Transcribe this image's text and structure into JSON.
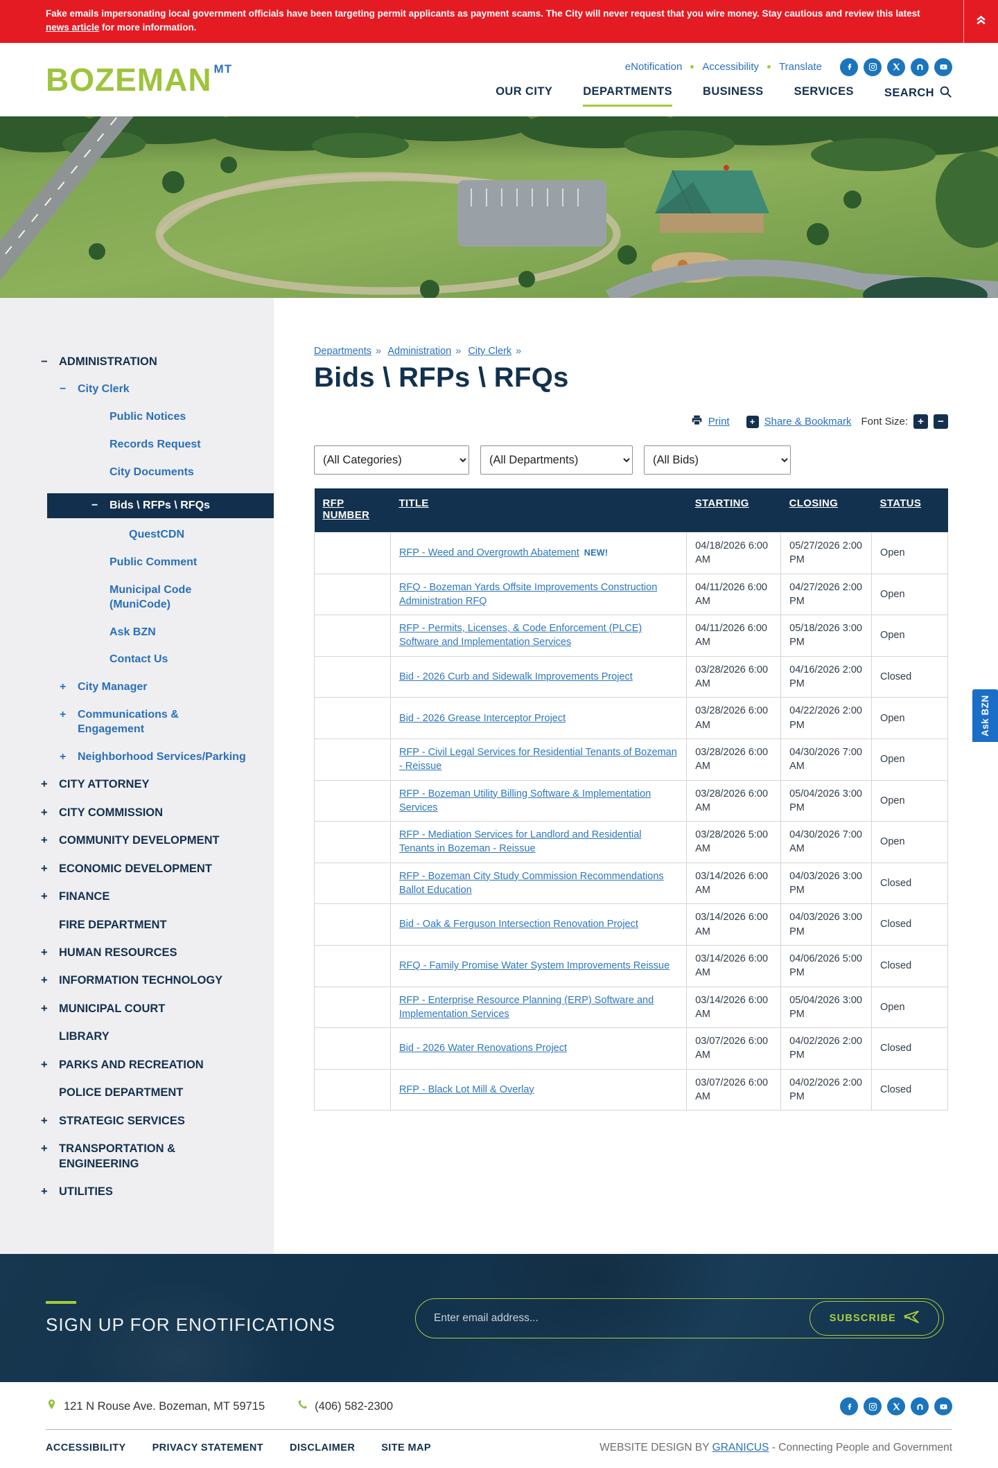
{
  "alert": {
    "text_before": "Fake emails impersonating local government officials have been targeting permit applicants as payment scams. The City will never request that you wire money. Stay cautious and review this latest ",
    "link_text": "news article",
    "text_after": " for more information."
  },
  "header": {
    "logo_text": "BOZEMAN",
    "logo_sup": "MT",
    "utility": [
      "eNotification",
      "Accessibility",
      "Translate"
    ],
    "nav": [
      "OUR CITY",
      "DEPARTMENTS",
      "BUSINESS",
      "SERVICES"
    ],
    "search_label": "SEARCH"
  },
  "social": [
    "facebook",
    "instagram",
    "x",
    "nextdoor",
    "youtube"
  ],
  "sidebar": {
    "items": [
      {
        "lvl": 0,
        "exp": "-",
        "label": "ADMINISTRATION",
        "style": "dept"
      },
      {
        "lvl": 1,
        "exp": "-",
        "label": "City Clerk",
        "style": "sub"
      },
      {
        "lvl": 2,
        "exp": "",
        "label": "Public Notices",
        "style": "leaf"
      },
      {
        "lvl": 2,
        "exp": "",
        "label": "Records Request",
        "style": "leaf"
      },
      {
        "lvl": 2,
        "exp": "",
        "label": "City Documents",
        "style": "leaf"
      },
      {
        "lvl": 2,
        "exp": "-",
        "label": "Bids \\ RFPs \\ RFQs",
        "style": "leaf",
        "active": true
      },
      {
        "lvl": 3,
        "exp": "",
        "label": "QuestCDN",
        "style": "leaf"
      },
      {
        "lvl": 2,
        "exp": "",
        "label": "Public Comment",
        "style": "leaf"
      },
      {
        "lvl": 2,
        "exp": "",
        "label": "Municipal Code (MuniCode)",
        "style": "leaf"
      },
      {
        "lvl": 2,
        "exp": "",
        "label": "Ask BZN",
        "style": "leaf"
      },
      {
        "lvl": 2,
        "exp": "",
        "label": "Contact Us",
        "style": "leaf"
      },
      {
        "lvl": 1,
        "exp": "+",
        "label": "City Manager",
        "style": "sub"
      },
      {
        "lvl": 1,
        "exp": "+",
        "label": "Communications & Engagement",
        "style": "sub"
      },
      {
        "lvl": 1,
        "exp": "+",
        "label": "Neighborhood Services/Parking",
        "style": "sub"
      },
      {
        "lvl": 0,
        "exp": "+",
        "label": "CITY ATTORNEY",
        "style": "dept"
      },
      {
        "lvl": 0,
        "exp": "+",
        "label": "CITY COMMISSION",
        "style": "dept"
      },
      {
        "lvl": 0,
        "exp": "+",
        "label": "COMMUNITY DEVELOPMENT",
        "style": "dept"
      },
      {
        "lvl": 0,
        "exp": "+",
        "label": "ECONOMIC DEVELOPMENT",
        "style": "dept"
      },
      {
        "lvl": 0,
        "exp": "+",
        "label": "FINANCE",
        "style": "dept"
      },
      {
        "lvl": 0,
        "exp": "",
        "label": "FIRE DEPARTMENT",
        "style": "dept"
      },
      {
        "lvl": 0,
        "exp": "+",
        "label": "HUMAN RESOURCES",
        "style": "dept"
      },
      {
        "lvl": 0,
        "exp": "+",
        "label": "INFORMATION TECHNOLOGY",
        "style": "dept"
      },
      {
        "lvl": 0,
        "exp": "+",
        "label": "MUNICIPAL COURT",
        "style": "dept"
      },
      {
        "lvl": 0,
        "exp": "",
        "label": "LIBRARY",
        "style": "dept"
      },
      {
        "lvl": 0,
        "exp": "+",
        "label": "PARKS AND RECREATION",
        "style": "dept"
      },
      {
        "lvl": 0,
        "exp": "",
        "label": "POLICE DEPARTMENT",
        "style": "dept"
      },
      {
        "lvl": 0,
        "exp": "+",
        "label": "STRATEGIC SERVICES",
        "style": "dept"
      },
      {
        "lvl": 0,
        "exp": "+",
        "label": "TRANSPORTATION & ENGINEERING",
        "style": "dept"
      },
      {
        "lvl": 0,
        "exp": "+",
        "label": "UTILITIES",
        "style": "dept"
      }
    ]
  },
  "breadcrumb": {
    "items": [
      "Departments",
      "Administration",
      "City Clerk"
    ],
    "separator": "»"
  },
  "page": {
    "title": "Bids \\ RFPs \\ RFQs",
    "print_label": "Print",
    "share_label": "Share & Bookmark",
    "share_plus": "+",
    "font_size_label": "Font Size:",
    "font_plus": "+",
    "font_minus": "−"
  },
  "filters": [
    "(All Categories)",
    "(All Departments)",
    "(All Bids)"
  ],
  "table": {
    "headers": [
      "RFP NUMBER",
      "TITLE",
      "STARTING",
      "CLOSING",
      "STATUS"
    ],
    "new_label": "NEW!",
    "rows": [
      {
        "title": "RFP - Weed and Overgrowth Abatement",
        "new": true,
        "starting": "04/18/2026 6:00 AM",
        "closing": "05/27/2026 2:00 PM",
        "status": "Open"
      },
      {
        "title": "RFQ - Bozeman Yards Offsite Improvements Construction Administration RFQ",
        "new": false,
        "starting": "04/11/2026 6:00 AM",
        "closing": "04/27/2026 2:00 PM",
        "status": "Open"
      },
      {
        "title": "RFP - Permits, Licenses, & Code Enforcement (PLCE) Software and Implementation Services",
        "new": false,
        "starting": "04/11/2026 6:00 AM",
        "closing": "05/18/2026 3:00 PM",
        "status": "Open"
      },
      {
        "title": "Bid - 2026 Curb and Sidewalk Improvements Project",
        "new": false,
        "starting": "03/28/2026 6:00 AM",
        "closing": "04/16/2026 2:00 PM",
        "status": "Closed"
      },
      {
        "title": "Bid - 2026 Grease Interceptor Project",
        "new": false,
        "starting": "03/28/2026 6:00 AM",
        "closing": "04/22/2026 2:00 PM",
        "status": "Open"
      },
      {
        "title": "RFP - Civil Legal Services for Residential Tenants of Bozeman - Reissue",
        "new": false,
        "starting": "03/28/2026 6:00 AM",
        "closing": "04/30/2026 7:00 AM",
        "status": "Open"
      },
      {
        "title": "RFP - Bozeman Utility Billing Software & Implementation Services",
        "new": false,
        "starting": "03/28/2026 6:00 AM",
        "closing": "05/04/2026 3:00 PM",
        "status": "Open"
      },
      {
        "title": "RFP - Mediation Services for Landlord and Residential Tenants in Bozeman - Reissue",
        "new": false,
        "starting": "03/28/2026 5:00 AM",
        "closing": "04/30/2026 7:00 AM",
        "status": "Open"
      },
      {
        "title": "RFP - Bozeman City Study Commission Recommendations Ballot Education",
        "new": false,
        "starting": "03/14/2026 6:00 AM",
        "closing": "04/03/2026 3:00 PM",
        "status": "Closed"
      },
      {
        "title": "Bid - Oak & Ferguson Intersection Renovation Project",
        "new": false,
        "starting": "03/14/2026 6:00 AM",
        "closing": "04/03/2026 3:00 PM",
        "status": "Closed"
      },
      {
        "title": "RFQ - Family Promise Water System Improvements Reissue",
        "new": false,
        "starting": "03/14/2026 6:00 AM",
        "closing": "04/06/2026 5:00 PM",
        "status": "Closed"
      },
      {
        "title": "RFP - Enterprise Resource Planning (ERP) Software and Implementation Services",
        "new": false,
        "starting": "03/14/2026 6:00 AM",
        "closing": "05/04/2026 3:00 PM",
        "status": "Open"
      },
      {
        "title": "Bid - 2026 Water Renovations Project",
        "new": false,
        "starting": "03/07/2026 6:00 AM",
        "closing": "04/02/2026 2:00 PM",
        "status": "Closed"
      },
      {
        "title": "RFP - Black Lot Mill & Overlay",
        "new": false,
        "starting": "03/07/2026 6:00 AM",
        "closing": "04/02/2026 2:00 PM",
        "status": "Closed"
      }
    ]
  },
  "ask_bzn_label": "Ask BZN",
  "footer": {
    "signup_title": "SIGN UP FOR ENOTIFICATIONS",
    "email_placeholder": "Enter email address...",
    "subscribe_label": "SUBSCRIBE",
    "address": "121 N Rouse Ave. Bozeman, MT 59715",
    "phone": "(406) 582-2300",
    "links": [
      "ACCESSIBILITY",
      "PRIVACY STATEMENT",
      "DISCLAIMER",
      "SITE MAP"
    ],
    "credit_prefix": "WEBSITE DESIGN BY",
    "credit_link": "GRANICUS",
    "credit_suffix": "- Connecting People and Government"
  },
  "colors": {
    "alert_red": "#e51b23",
    "brand_navy": "#12314e",
    "accent_green": "#a2cc3a",
    "link_blue": "#2b70c0",
    "social_blue": "#1b75bc"
  }
}
